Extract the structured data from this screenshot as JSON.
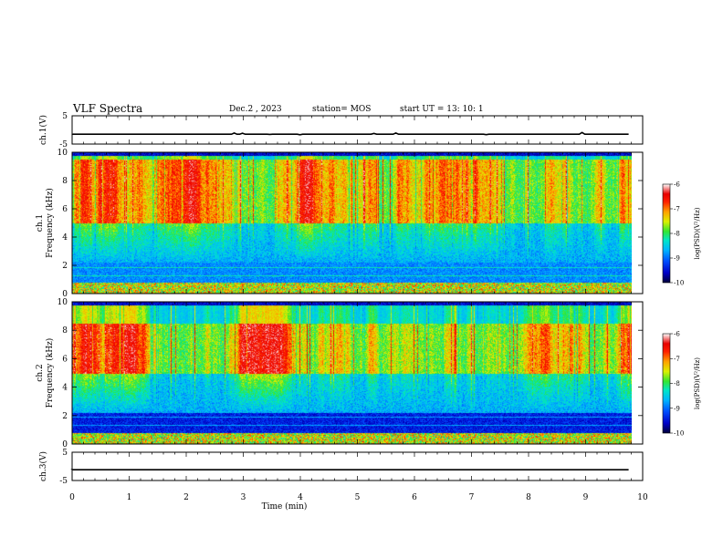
{
  "header": {
    "title": "VLF Spectra",
    "date": "Dec.2 , 2023",
    "station": "station= MOS",
    "start_ut": "start  UT =   13: 10: 1"
  },
  "chart_data": [
    {
      "id": "ch1-voltage",
      "type": "line",
      "ylabel": "ch.1(V)",
      "ylim": [
        -5,
        5
      ],
      "yticks": [
        5,
        -5
      ],
      "xlim": [
        0,
        10
      ],
      "baseline_value": -1.5,
      "trace_end_min": 9.8
    },
    {
      "id": "ch1-spectrogram",
      "type": "heatmap",
      "ylabel_top": "ch.1",
      "ylabel": "Frequency (kHz)",
      "ylim": [
        0,
        10
      ],
      "yticks": [
        0,
        2,
        4,
        6,
        8,
        10
      ],
      "xlim": [
        0,
        10
      ],
      "data_end_min": 9.8,
      "colorbar": {
        "label": "log(PSD)(V²/Hz)",
        "range": [
          -10,
          -6
        ],
        "ticks": [
          -6,
          -7,
          -8,
          -9,
          -10
        ]
      },
      "dominant_band_khz": [
        5,
        9.5
      ]
    },
    {
      "id": "ch2-spectrogram",
      "type": "heatmap",
      "ylabel_top": "ch.2",
      "ylabel": "Frequency (kHz)",
      "ylim": [
        0,
        10
      ],
      "yticks": [
        0,
        2,
        4,
        6,
        8,
        10
      ],
      "xlim": [
        0,
        10
      ],
      "data_end_min": 9.8,
      "colorbar": {
        "label": "log(PSD)(V²/Hz)",
        "range": [
          -10,
          -6
        ],
        "ticks": [
          -6,
          -7,
          -8,
          -9,
          -10
        ]
      },
      "dominant_band_khz": [
        5,
        8.5
      ]
    },
    {
      "id": "ch3-voltage",
      "type": "line",
      "ylabel": "ch.3(V)",
      "ylim": [
        -5,
        5
      ],
      "yticks": [
        5,
        -5
      ],
      "xlim": [
        0,
        10
      ],
      "baseline_value": -1.2,
      "trace_end_min": 9.8,
      "xlabel": "Time (min)",
      "xticks": [
        0,
        1,
        2,
        3,
        4,
        5,
        6,
        7,
        8,
        9,
        10
      ]
    }
  ],
  "colors": {
    "colormap": [
      "#00003a",
      "#0000c8",
      "#0050ff",
      "#00b4ff",
      "#00e6c8",
      "#32e632",
      "#dcf000",
      "#ffa000",
      "#ff2000",
      "#e80000",
      "#ffffff"
    ]
  }
}
